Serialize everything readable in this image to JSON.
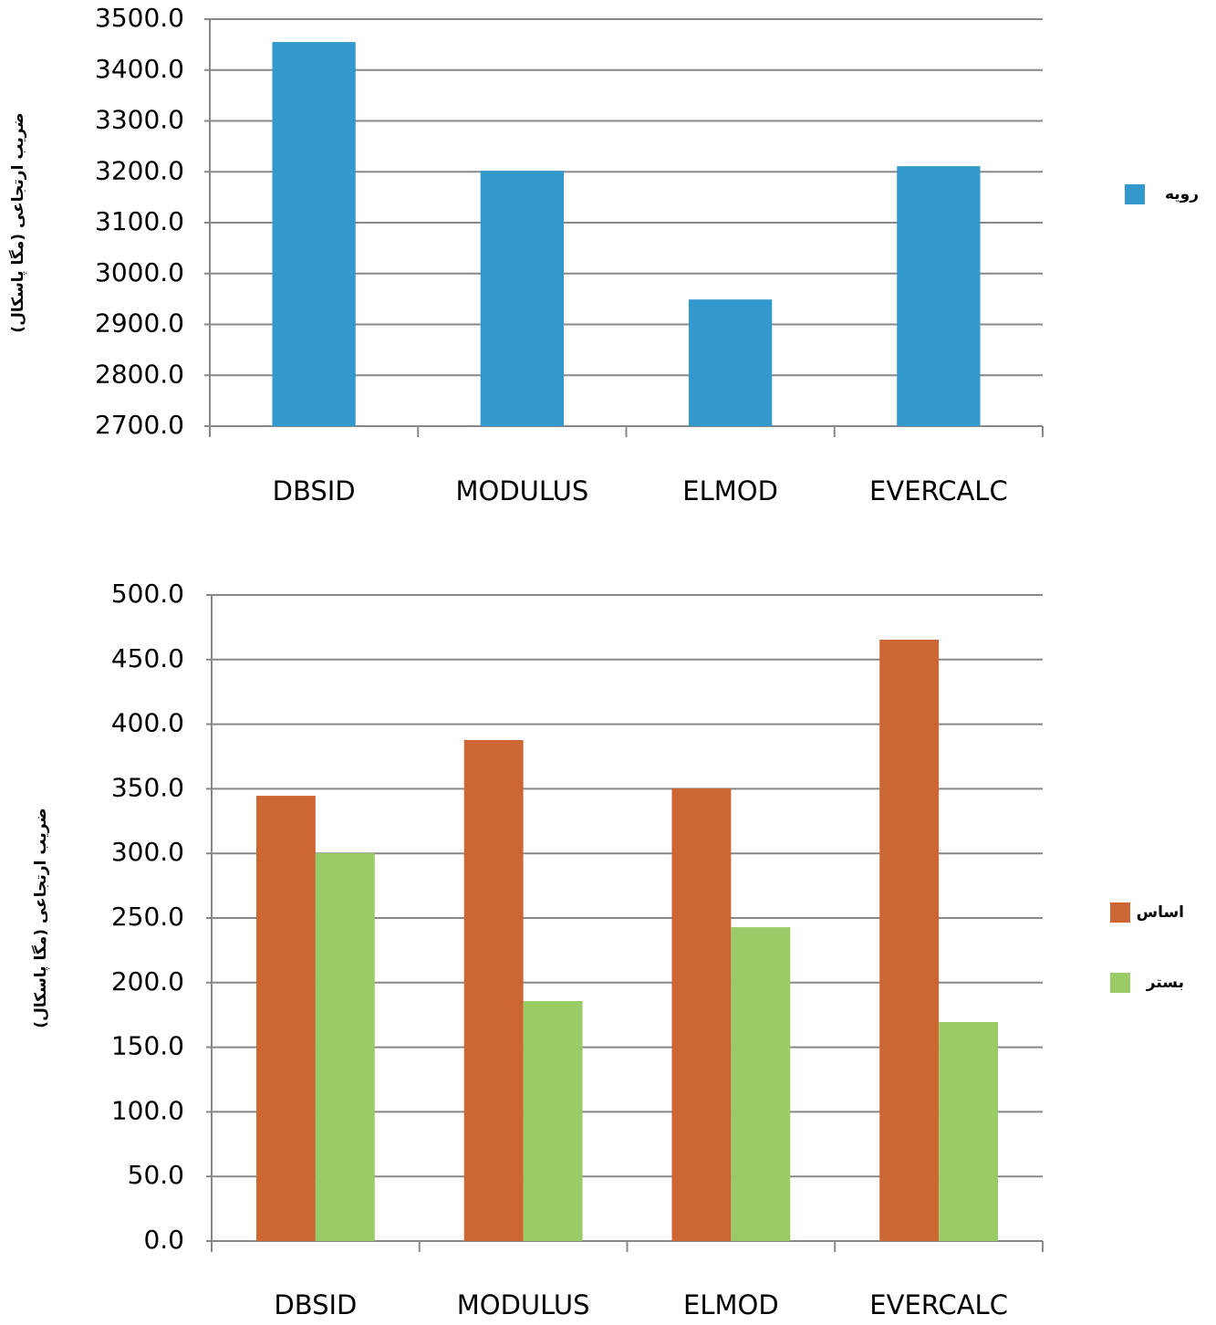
{
  "chart_data": [
    {
      "type": "bar",
      "y_label": "ضریب ارتجاعی (مگا پاسکال)",
      "categories": [
        "DBSID",
        "MODULUS",
        "ELMOD",
        "EVERCALC"
      ],
      "series": [
        {
          "name": "رویه",
          "color": "#3399cc",
          "values": [
            3455,
            3202,
            2949,
            3211
          ]
        }
      ],
      "ylim": [
        2700,
        3500
      ],
      "yticks": [
        {
          "value": 2700,
          "label": "2700.0"
        },
        {
          "value": 2800,
          "label": "2800.0"
        },
        {
          "value": 2900,
          "label": "2900.0"
        },
        {
          "value": 3000,
          "label": "3000.0"
        },
        {
          "value": 3100,
          "label": "3100.0"
        },
        {
          "value": 3200,
          "label": "3200.0"
        },
        {
          "value": 3300,
          "label": "3300.0"
        },
        {
          "value": 3400,
          "label": "3400.0"
        },
        {
          "value": 3500,
          "label": "3500.0"
        }
      ],
      "grid": true,
      "legend": "right"
    },
    {
      "type": "bar",
      "y_label": "ضریب ارتجاعی (مگا پاسکال)",
      "categories": [
        "DBSID",
        "MODULUS",
        "ELMOD",
        "EVERCALC"
      ],
      "series": [
        {
          "name": "اساس",
          "color": "#cc6633",
          "values": [
            344.6,
            387.7,
            350.3,
            465.4
          ]
        },
        {
          "name": "بستر",
          "color": "#99cc66",
          "values": [
            300.1,
            185.7,
            242.9,
            169.5
          ]
        }
      ],
      "ylim": [
        0,
        500
      ],
      "yticks": [
        {
          "value": 0,
          "label": "0.0"
        },
        {
          "value": 50,
          "label": "50.0"
        },
        {
          "value": 100,
          "label": "100.0"
        },
        {
          "value": 150,
          "label": "150.0"
        },
        {
          "value": 200,
          "label": "200.0"
        },
        {
          "value": 250,
          "label": "250.0"
        },
        {
          "value": 300,
          "label": "300.0"
        },
        {
          "value": 350,
          "label": "350.0"
        },
        {
          "value": 400,
          "label": "400.0"
        },
        {
          "value": 450,
          "label": "450.0"
        },
        {
          "value": 500,
          "label": "500.0"
        }
      ],
      "grid": true,
      "legend": "right"
    }
  ]
}
